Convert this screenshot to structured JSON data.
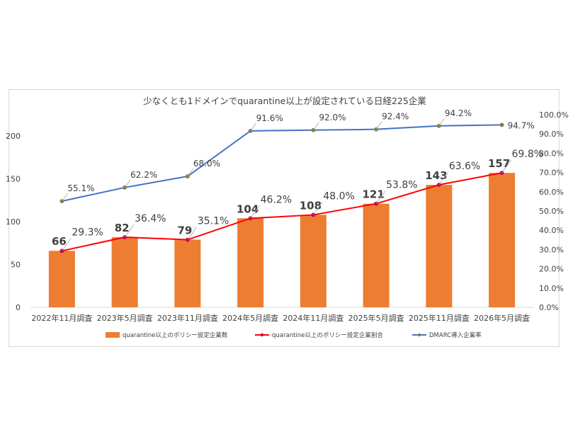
{
  "chart_data": {
    "type": "bar",
    "title": "少なくとも1ドメインでquarantine以上が設定されている日経225企業",
    "categories": [
      "2022年11月調査",
      "2023年5月調査",
      "2023年11月調査",
      "2024年5月調査",
      "2024年11月調査",
      "2025年5月調査",
      "2025年11月調査",
      "2026年5月調査"
    ],
    "series": [
      {
        "name": "quarantine以上のポリシー設定企業数",
        "type": "bar",
        "axis": "left",
        "color": "#ed7d31",
        "values": [
          66,
          82,
          79,
          104,
          108,
          121,
          143,
          157
        ],
        "labels": [
          "66",
          "82",
          "79",
          "104",
          "108",
          "121",
          "143",
          "157"
        ]
      },
      {
        "name": "quarantine以上のポリシー設定企業割合",
        "type": "line",
        "axis": "right",
        "color": "#ff0000",
        "values": [
          29.3,
          36.4,
          35.1,
          46.2,
          48.0,
          53.8,
          63.6,
          69.8
        ],
        "labels": [
          "29.3%",
          "36.4%",
          "35.1%",
          "46.2%",
          "48.0%",
          "53.8%",
          "63.6%",
          "69.8%"
        ]
      },
      {
        "name": "DMARC導入企業率",
        "type": "line",
        "axis": "right",
        "color": "#4472c4",
        "values": [
          55.1,
          62.2,
          68.0,
          91.6,
          92.0,
          92.4,
          94.2,
          94.7
        ],
        "labels": [
          "55.1%",
          "62.2%",
          "68.0%",
          "91.6%",
          "92.0%",
          "92.4%",
          "94.2%",
          "94.7%"
        ]
      }
    ],
    "y_left": {
      "min": 0,
      "max": 225,
      "ticks": [
        "0",
        "50",
        "100",
        "150",
        "200"
      ]
    },
    "y_right": {
      "min": 0,
      "max": 100,
      "ticks": [
        "0.0%",
        "10.0%",
        "20.0%",
        "30.0%",
        "40.0%",
        "50.0%",
        "60.0%",
        "70.0%",
        "80.0%",
        "90.0%",
        "100.0%"
      ]
    },
    "grid": false,
    "legend": "bottom"
  }
}
